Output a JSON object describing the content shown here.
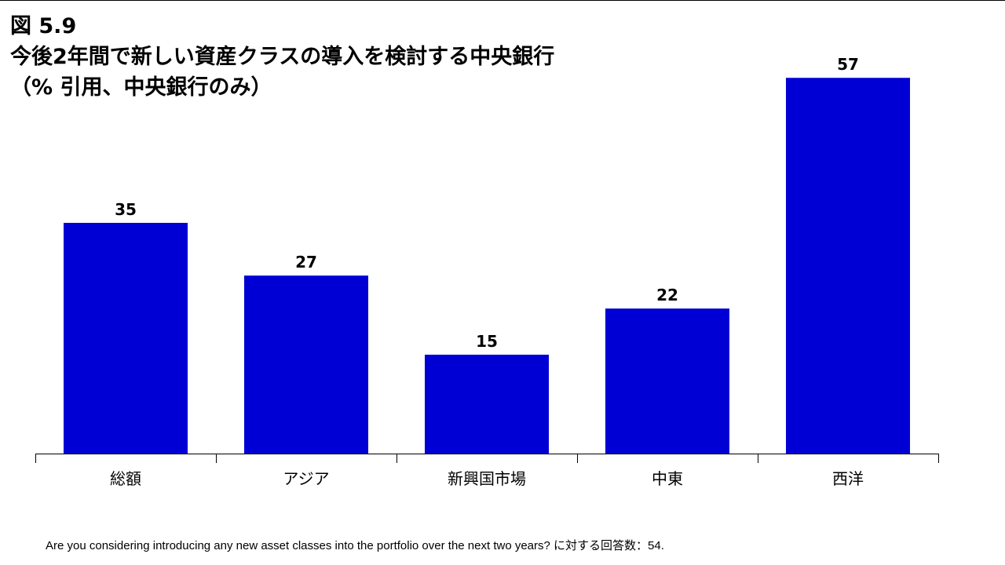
{
  "figure_label": "図 5.9",
  "title_line1": "今後2年間で新しい資産クラスの導入を検討する中央銀行",
  "title_line2": "（% 引用、中央銀行のみ）",
  "footnote": "Are you considering introducing any new asset classes into the portfolio over the next two years? に対する回答数：54.",
  "chart_data": {
    "type": "bar",
    "title": "今後2年間で新しい資産クラスの導入を検討する中央銀行",
    "subtitle": "（% 引用、中央銀行のみ）",
    "categories": [
      "総額",
      "アジア",
      "新興国市場",
      "中東",
      "西洋"
    ],
    "values": [
      35,
      27,
      15,
      22,
      57
    ],
    "ylim": [
      0,
      60
    ],
    "grid": false,
    "bar_color": "#0000d4",
    "data_labels": true
  }
}
